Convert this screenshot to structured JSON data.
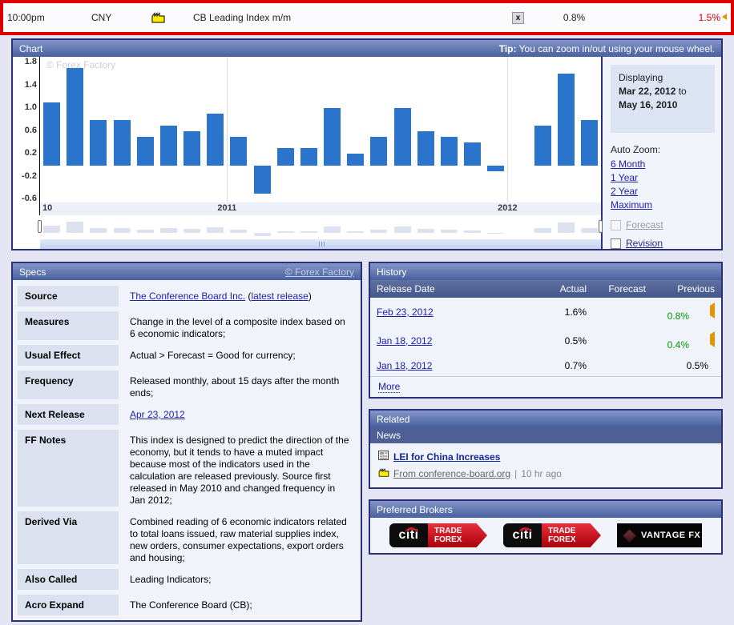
{
  "calendar_row": {
    "time": "10:00pm",
    "currency": "CNY",
    "event": "CB Leading Index m/m",
    "detail_symbol": "x",
    "actual": "0.8%",
    "previous": "1.5%"
  },
  "chart_panel": {
    "title": "Chart",
    "tip_label": "Tip:",
    "tip_text": " You can zoom in/out using your mouse wheel.",
    "watermark": "© Forex Factory",
    "displaying_label": "Displaying",
    "date_from": "Mar 22, 2012",
    "to_word": " to",
    "date_to": "May 16, 2010",
    "auto_zoom_label": "Auto Zoom:",
    "zoom_links": [
      "6 Month",
      "1 Year",
      "2 Year",
      "Maximum"
    ],
    "forecast_label": "Forecast",
    "revision_label": "Revision"
  },
  "chart_data": {
    "type": "bar",
    "title": "CB Leading Index m/m",
    "xlabel": "",
    "ylabel": "",
    "ylim": [
      -0.65,
      1.9
    ],
    "yticks": [
      1.8,
      1.4,
      1.0,
      0.6,
      0.2,
      -0.2,
      -0.6
    ],
    "values": [
      1.1,
      1.7,
      0.8,
      0.8,
      0.5,
      0.7,
      0.6,
      0.9,
      0.5,
      -0.5,
      0.3,
      0.3,
      1.0,
      0.2,
      0.5,
      1.0,
      0.6,
      0.5,
      0.4,
      -0.1,
      null,
      0.7,
      1.6,
      0.8
    ],
    "bar_color": "#2b74cc",
    "grid_on": true,
    "grid_slots": [
      8,
      20
    ],
    "xticks": [
      {
        "label": "10",
        "slot": 0,
        "align": "left"
      },
      {
        "label": "2011",
        "slot": 8,
        "align": "center"
      },
      {
        "label": "2012",
        "slot": 20,
        "align": "center"
      }
    ],
    "legend": "none"
  },
  "specs": {
    "title": "Specs",
    "copyright": "© Forex Factory",
    "rows": [
      {
        "label": "Source",
        "link": "The Conference Board Inc.",
        "mid": " (",
        "link2": "latest release",
        "end": ")"
      },
      {
        "label": "Measures",
        "value": "Change in the level of a composite index based on 6 economic indicators;"
      },
      {
        "label": "Usual Effect",
        "value": "Actual > Forecast = Good for currency;"
      },
      {
        "label": "Frequency",
        "value": "Released monthly, about 15 days after the month ends;"
      },
      {
        "label": "Next Release",
        "link": "Apr 23, 2012"
      },
      {
        "label": "FF Notes",
        "value": "This index is designed to predict the direction of the economy, but it tends to have a muted impact because most of the indicators used in the calculation are released previously. Source first released in May 2010 and changed frequency in Jan 2012;"
      },
      {
        "label": "Derived Via",
        "value": "Combined reading of 6 economic indicators related to total loans issued, raw material supplies index, new orders, consumer expectations, export orders and housing;"
      },
      {
        "label": "Also Called",
        "value": "Leading Indicators;"
      },
      {
        "label": "Acro Expand",
        "value": "The Conference Board (CB);"
      }
    ]
  },
  "history": {
    "title": "History",
    "columns": [
      "Release Date",
      "Actual",
      "Forecast",
      "Previous"
    ],
    "rows": [
      {
        "date": "Feb 23, 2012",
        "actual": "1.6%",
        "forecast": "",
        "previous": "0.8%",
        "previous_class": "num green",
        "marker_class": "rev-marker"
      },
      {
        "date": "Jan 18, 2012",
        "actual": "0.5%",
        "forecast": "",
        "previous": "0.4%",
        "previous_class": "num green",
        "marker_class": "rev-marker"
      },
      {
        "date": "Jan 18, 2012",
        "actual": "0.7%",
        "forecast": "",
        "previous": "0.5%",
        "previous_class": "num",
        "marker_class": "rev-marker hidden"
      }
    ],
    "more": "More"
  },
  "related": {
    "title": "Related",
    "subtitle": "News",
    "news_title": "LEI for China Increases",
    "news_source": "From conference-board.org",
    "news_sep": "|",
    "news_age": "10 hr ago"
  },
  "brokers": {
    "title": "Preferred Brokers",
    "citi_text": "citi",
    "citi_line1": "TRADE",
    "citi_line2": "FOREX",
    "vantage_text": "VANTAGE FX"
  },
  "colors": {
    "highlight_border": "#dd0000",
    "bar_blue": "#2b74cc",
    "negative_red": "#cc0000",
    "positive_green": "#009900",
    "revised_orange": "#e09600",
    "panel_border": "#2a3178"
  }
}
